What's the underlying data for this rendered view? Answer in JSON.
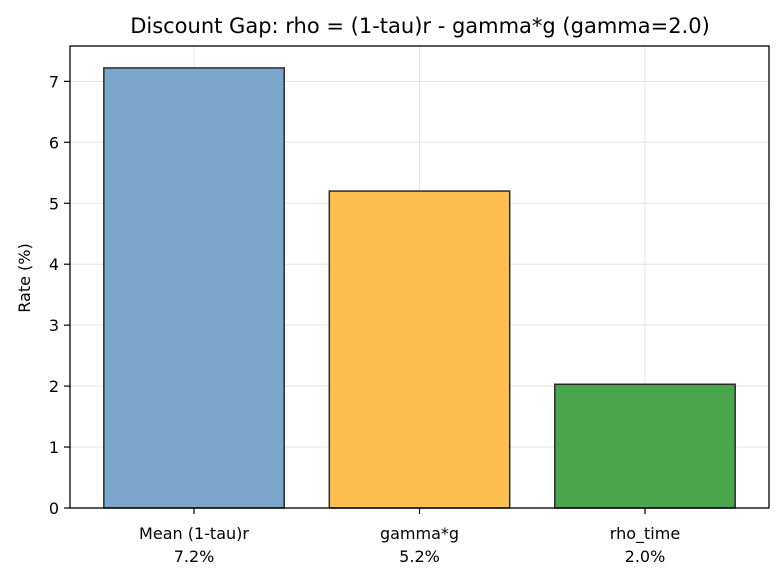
{
  "chart_data": {
    "type": "bar",
    "title": "Discount Gap: rho = (1-tau)r - gamma*g (gamma=2.0)",
    "xlabel": "",
    "ylabel": "Rate (%)",
    "categories": [
      "Mean (1-tau)r",
      "gamma*g",
      "rho_time"
    ],
    "category_sublabels": [
      "7.2%",
      "5.2%",
      "2.0%"
    ],
    "values": [
      7.22,
      5.2,
      2.03
    ],
    "colors": [
      "#7ba7cc",
      "#ffbf4f",
      "#4aa64a"
    ],
    "ylim": [
      0,
      7.58
    ],
    "yticks": [
      0,
      1,
      2,
      3,
      4,
      5,
      6,
      7
    ],
    "grid": true,
    "legend": "none"
  }
}
